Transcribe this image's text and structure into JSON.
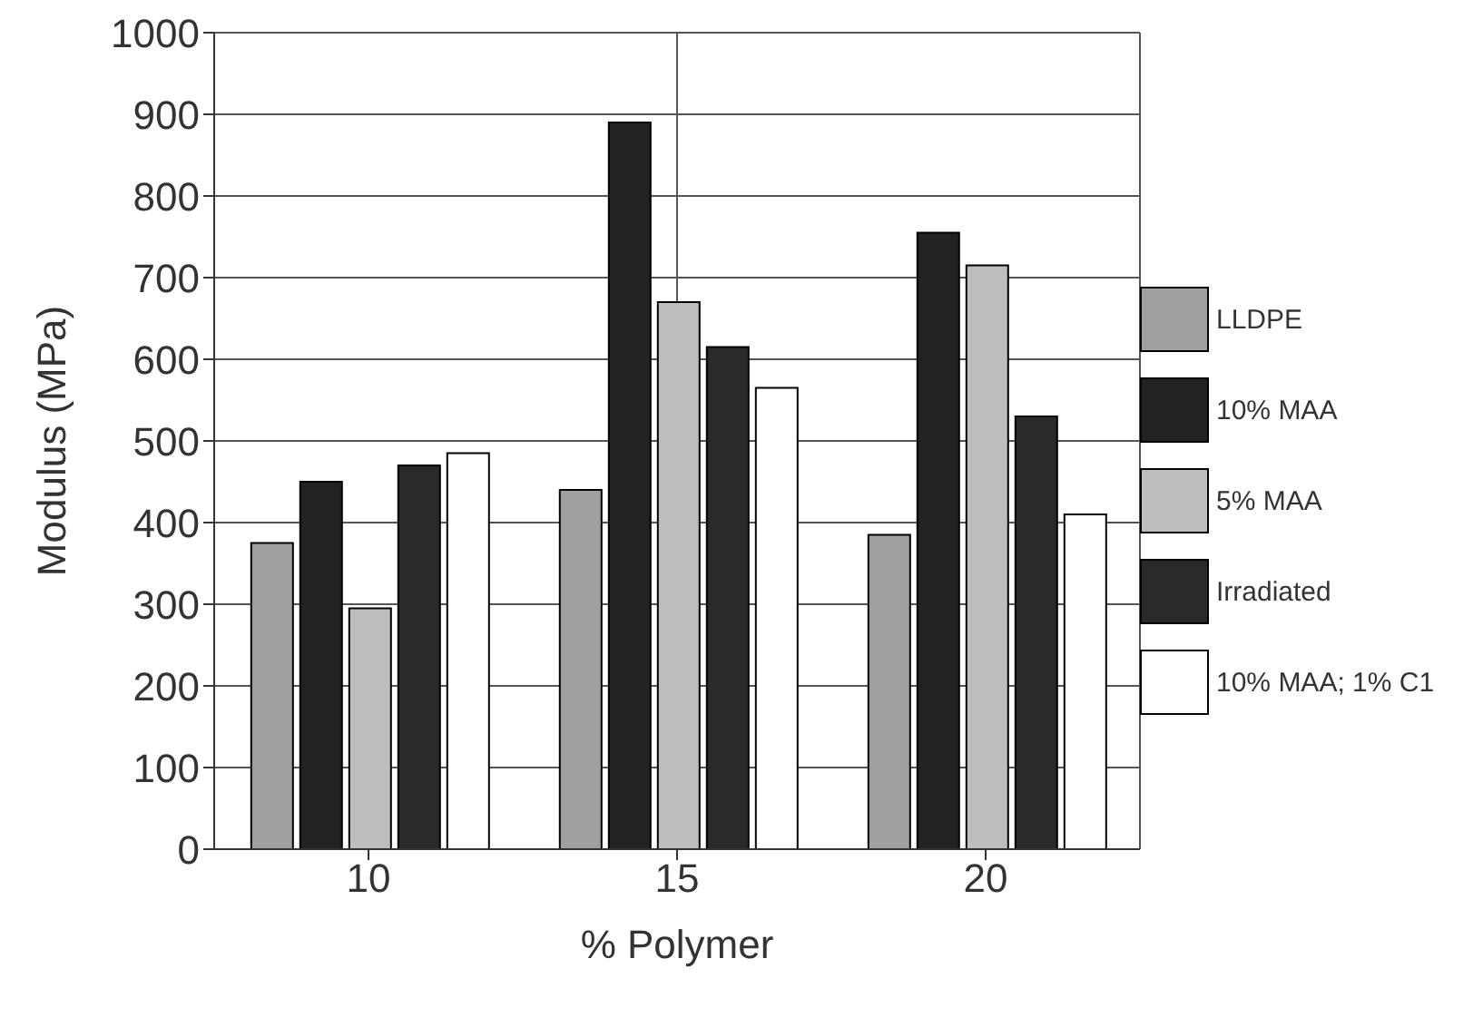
{
  "chart_data": {
    "type": "bar",
    "xlabel": "% Polymer",
    "ylabel": "Modulus (MPa)",
    "categories": [
      "10",
      "15",
      "20"
    ],
    "series": [
      {
        "name": "LLDPE",
        "color": "#a0a0a0",
        "values": [
          375,
          440,
          385
        ]
      },
      {
        "name": "10% MAA",
        "color": "#222222",
        "values": [
          450,
          890,
          755
        ]
      },
      {
        "name": "5% MAA",
        "color": "#bdbdbd",
        "values": [
          295,
          670,
          715
        ]
      },
      {
        "name": "Irradiated",
        "color": "#2a2a2a",
        "values": [
          470,
          615,
          530
        ]
      },
      {
        "name": "10% MAA; 1% C1",
        "color": "#ffffff",
        "values": [
          485,
          565,
          410
        ]
      }
    ],
    "ylim": [
      0,
      1000
    ],
    "yticks": [
      0,
      100,
      200,
      300,
      400,
      500,
      600,
      700,
      800,
      900,
      1000
    ],
    "grid": true,
    "legend": "right"
  }
}
